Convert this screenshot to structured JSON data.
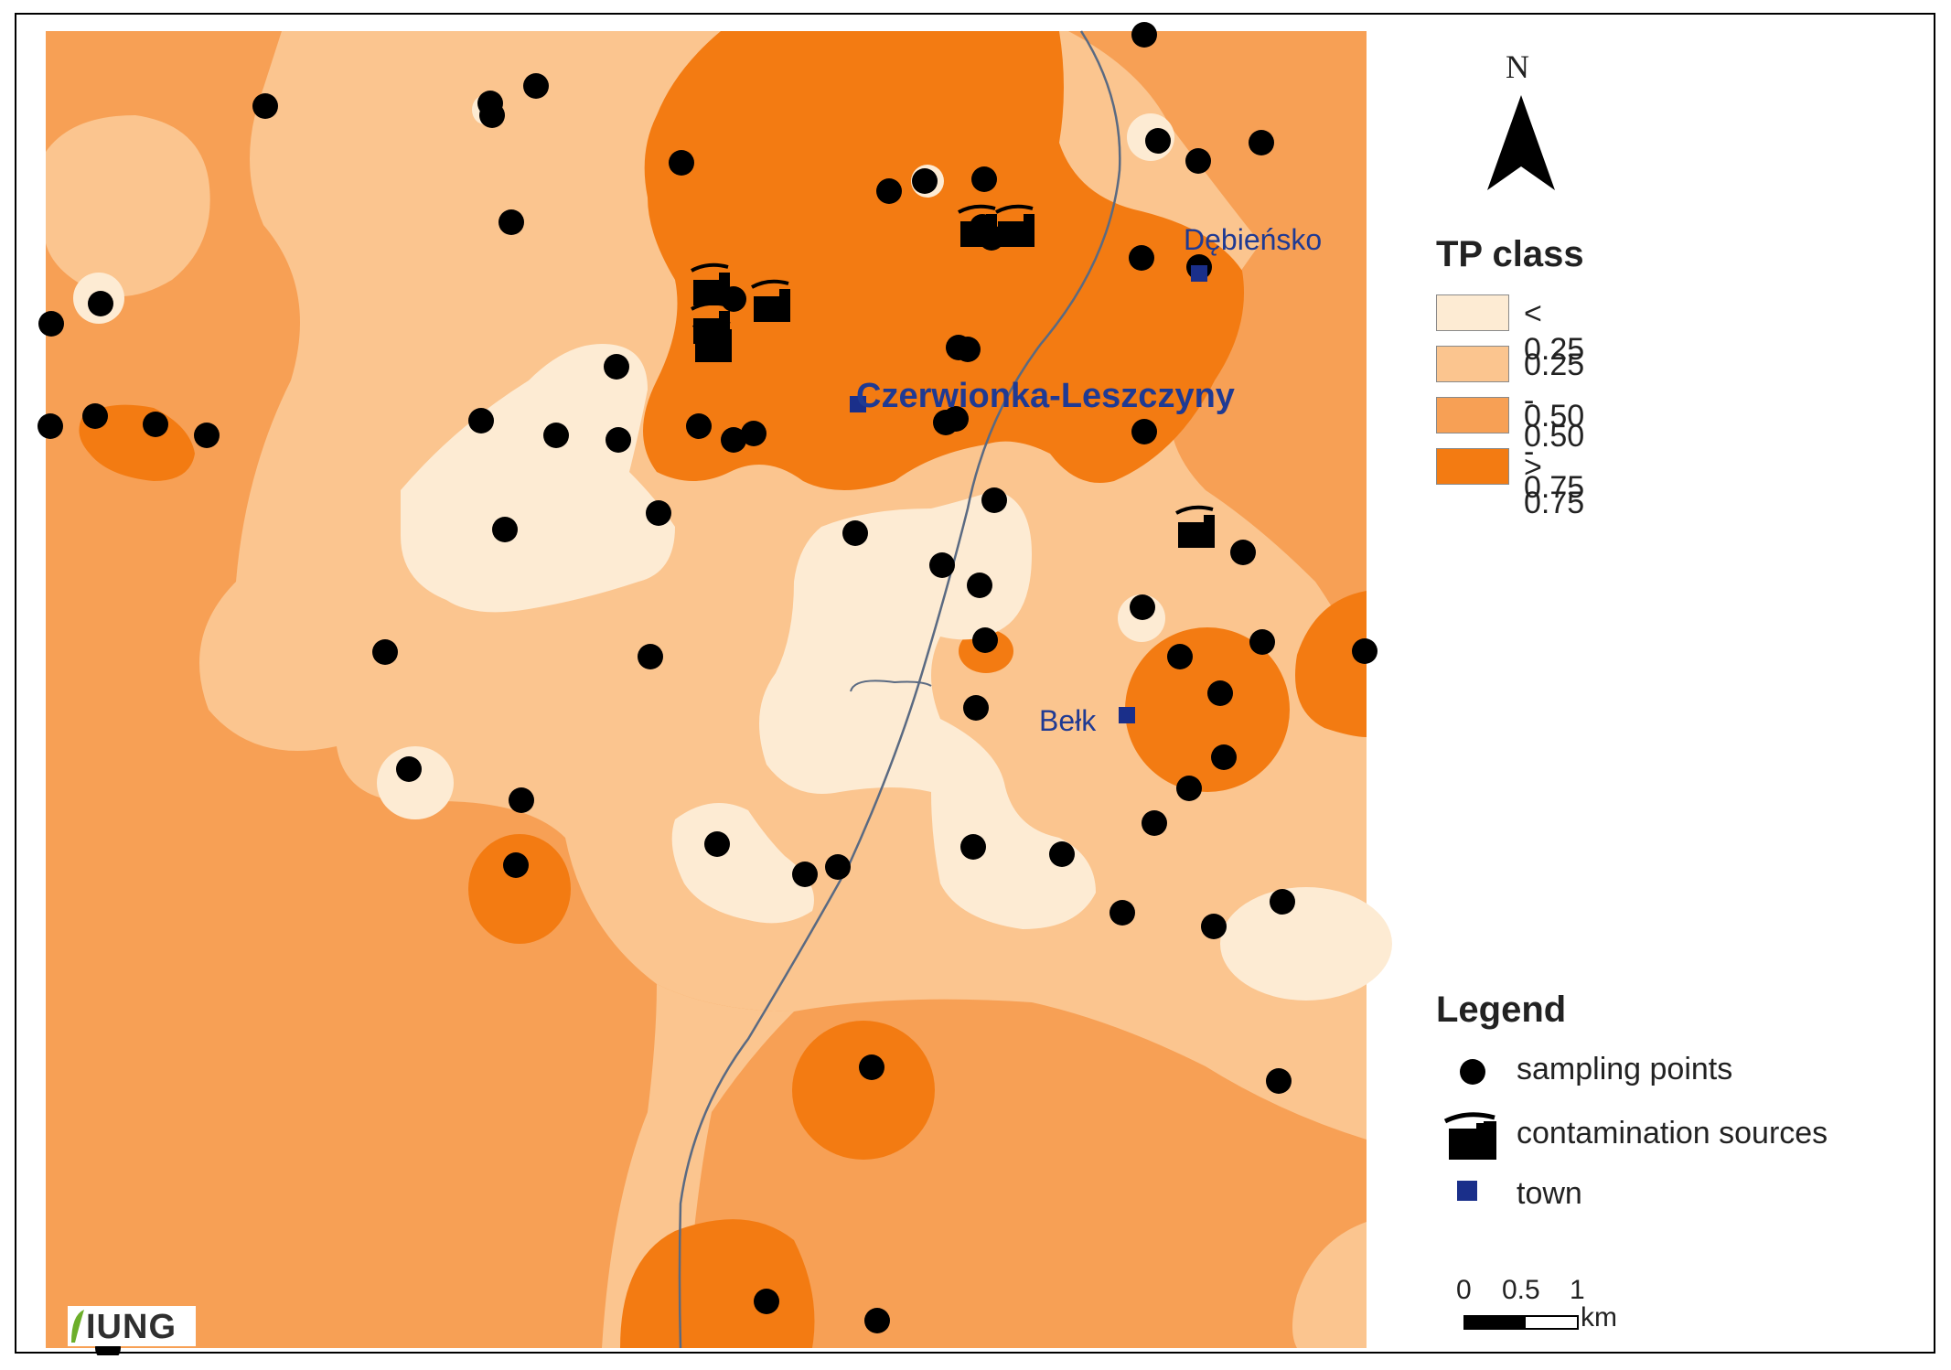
{
  "map": {
    "class_colors": [
      "#fdebd3",
      "#fbc58f",
      "#f7a055",
      "#f37b12"
    ],
    "sampling_points_count": 71,
    "contamination_sources_count": 7,
    "towns": [
      {
        "name": "Czerwionka-Leszczyny",
        "emphasis": "bold"
      },
      {
        "name": "Dębieńsko",
        "emphasis": "normal"
      },
      {
        "name": "Bełk",
        "emphasis": "normal"
      }
    ]
  },
  "north_arrow": {
    "label": "N"
  },
  "tp_legend": {
    "title": "TP class",
    "classes": [
      {
        "label": "< 0.25",
        "color": "#fdebd3"
      },
      {
        "label": "0.25 - 0.50",
        "color": "#fbc58f"
      },
      {
        "label": "0.50 - 0.75",
        "color": "#f7a055"
      },
      {
        "label": "> 0.75",
        "color": "#f37b12"
      }
    ]
  },
  "symbol_legend": {
    "title": "Legend",
    "items": [
      {
        "label": "sampling points",
        "icon": "sampling-point-icon"
      },
      {
        "label": "contamination sources",
        "icon": "factory-icon"
      },
      {
        "label": "town",
        "icon": "town-square-icon"
      }
    ]
  },
  "scale_bar": {
    "ticks": [
      "0",
      "0.5",
      "1"
    ],
    "unit": "km"
  },
  "logo": {
    "text": "IUNG"
  }
}
